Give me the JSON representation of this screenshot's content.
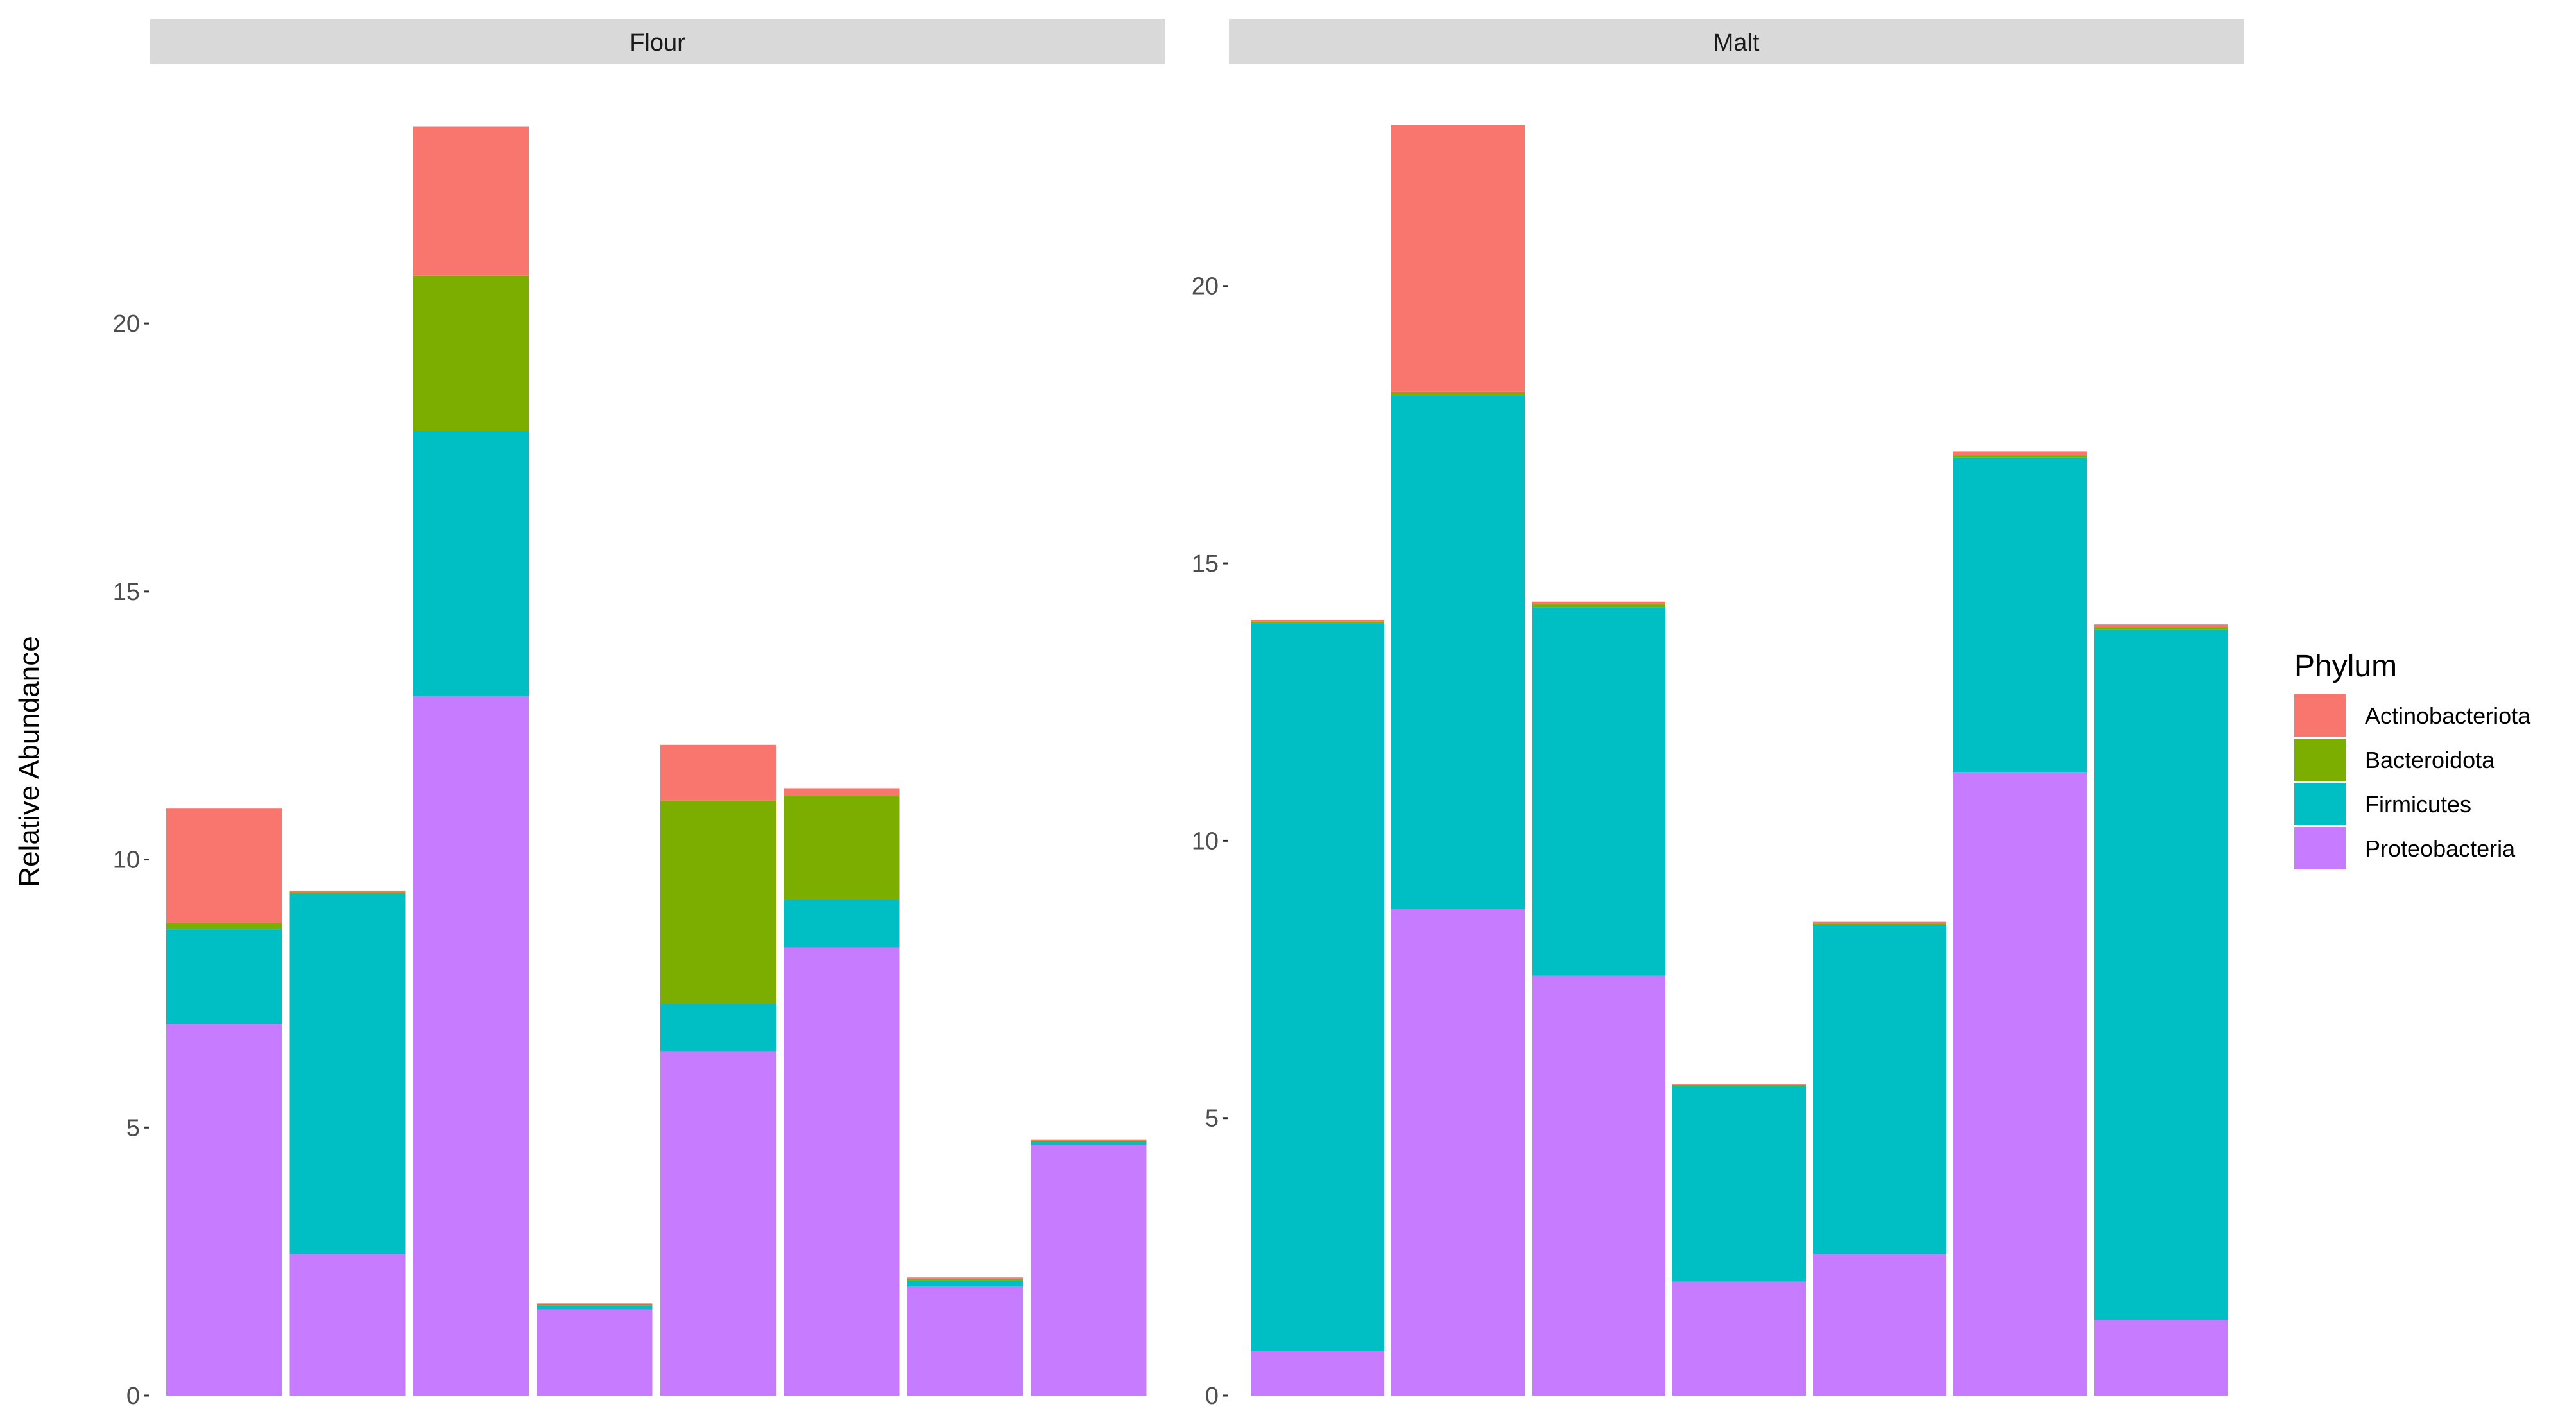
{
  "chart_data": {
    "type": "bar",
    "stacked": true,
    "ylabel": "Relative Abundance",
    "xlabel": "",
    "legend": {
      "title": "Phylum",
      "position": "right",
      "items": [
        {
          "name": "Actinobacteriota",
          "color": "#F8766D"
        },
        {
          "name": "Bacteroidota",
          "color": "#7CAE00"
        },
        {
          "name": "Firmicutes",
          "color": "#00BFC4"
        },
        {
          "name": "Proteobacteria",
          "color": "#C77CFF"
        }
      ]
    },
    "stack_order": [
      "Proteobacteria",
      "Firmicutes",
      "Bacteroidota",
      "Actinobacteriota"
    ],
    "panels": [
      {
        "title": "Flour",
        "ylim": [
          0,
          23.7
        ],
        "yticks": [
          0,
          5,
          10,
          15,
          20
        ],
        "ytick_labels": [
          "0",
          "5",
          "10",
          "15",
          "20"
        ],
        "bars": [
          {
            "Proteobacteria": 6.93,
            "Firmicutes": 1.77,
            "Bacteroidota": 0.12,
            "Actinobacteriota": 2.13
          },
          {
            "Proteobacteria": 2.64,
            "Firmicutes": 6.72,
            "Bacteroidota": 0.03,
            "Actinobacteriota": 0.03
          },
          {
            "Proteobacteria": 13.05,
            "Firmicutes": 4.95,
            "Bacteroidota": 2.89,
            "Actinobacteriota": 2.78
          },
          {
            "Proteobacteria": 1.61,
            "Firmicutes": 0.07,
            "Bacteroidota": 0.02,
            "Actinobacteriota": 0.02
          },
          {
            "Proteobacteria": 6.42,
            "Firmicutes": 0.89,
            "Bacteroidota": 3.79,
            "Actinobacteriota": 1.04
          },
          {
            "Proteobacteria": 8.36,
            "Firmicutes": 0.89,
            "Bacteroidota": 1.94,
            "Actinobacteriota": 0.14
          },
          {
            "Proteobacteria": 2.03,
            "Firmicutes": 0.12,
            "Bacteroidota": 0.03,
            "Actinobacteriota": 0.02
          },
          {
            "Proteobacteria": 4.68,
            "Firmicutes": 0.06,
            "Bacteroidota": 0.02,
            "Actinobacteriota": 0.02
          }
        ]
      },
      {
        "title": "Malt",
        "ylim": [
          0,
          22.9
        ],
        "yticks": [
          0,
          5,
          10,
          15,
          20
        ],
        "ytick_labels": [
          "0",
          "5",
          "10",
          "15",
          "20"
        ],
        "bars": [
          {
            "Proteobacteria": 0.8,
            "Firmicutes": 13.12,
            "Bacteroidota": 0.03,
            "Actinobacteriota": 0.03
          },
          {
            "Proteobacteria": 8.77,
            "Firmicutes": 9.26,
            "Bacteroidota": 0.06,
            "Actinobacteriota": 4.81
          },
          {
            "Proteobacteria": 7.57,
            "Firmicutes": 6.64,
            "Bacteroidota": 0.05,
            "Actinobacteriota": 0.05
          },
          {
            "Proteobacteria": 2.05,
            "Firmicutes": 3.53,
            "Bacteroidota": 0.02,
            "Actinobacteriota": 0.02
          },
          {
            "Proteobacteria": 2.55,
            "Firmicutes": 5.93,
            "Bacteroidota": 0.03,
            "Actinobacteriota": 0.03
          },
          {
            "Proteobacteria": 11.24,
            "Firmicutes": 5.66,
            "Bacteroidota": 0.05,
            "Actinobacteriota": 0.07
          },
          {
            "Proteobacteria": 1.36,
            "Firmicutes": 12.44,
            "Bacteroidota": 0.05,
            "Actinobacteriota": 0.05
          }
        ]
      }
    ]
  }
}
